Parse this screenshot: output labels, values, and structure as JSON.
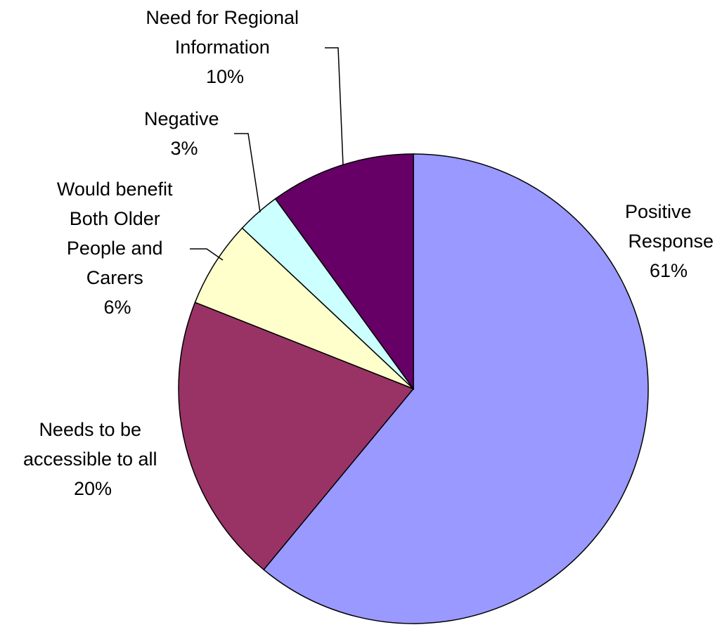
{
  "chart_data": {
    "type": "pie",
    "start_angle": "12 o'clock",
    "direction": "clockwise",
    "slices": [
      {
        "label": [
          "Positive",
          "Response"
        ],
        "percent_label": "61%",
        "value": 61,
        "color": "#9999ff"
      },
      {
        "label": [
          "Needs to be",
          "accessible to all"
        ],
        "percent_label": "20%",
        "value": 20,
        "color": "#993366"
      },
      {
        "label": [
          "Would benefit",
          "Both Older",
          "People and",
          "Carers"
        ],
        "percent_label": "6%",
        "value": 6,
        "color": "#ffffcc"
      },
      {
        "label": [
          "Negative"
        ],
        "percent_label": "3%",
        "value": 3,
        "color": "#ccffff"
      },
      {
        "label": [
          "Need for Regional",
          "Information"
        ],
        "percent_label": "10%",
        "value": 10,
        "color": "#660066"
      }
    ]
  }
}
